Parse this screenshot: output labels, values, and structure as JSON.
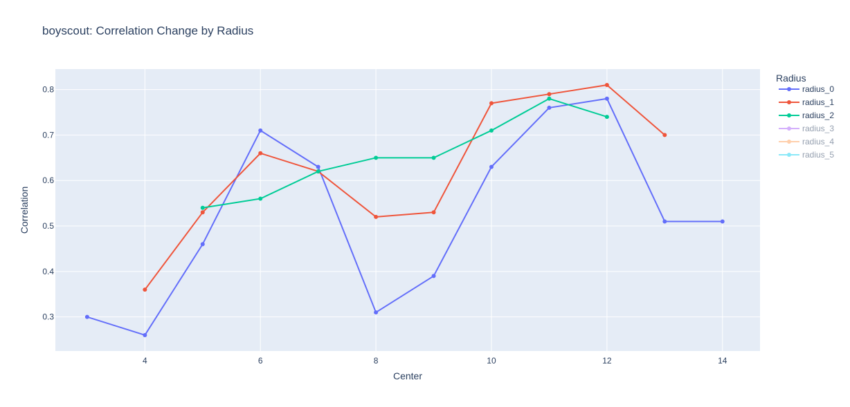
{
  "chart_data": {
    "type": "line",
    "title": "boyscout: Correlation Change by Radius",
    "xlabel": "Center",
    "ylabel": "Correlation",
    "xlim": [
      2.45,
      14.65
    ],
    "ylim": [
      0.225,
      0.845
    ],
    "xticks": [
      4,
      6,
      8,
      10,
      12,
      14
    ],
    "yticks": [
      0.3,
      0.4,
      0.5,
      0.6,
      0.7,
      0.8
    ],
    "xtick_labels": [
      "4",
      "6",
      "8",
      "10",
      "12",
      "14"
    ],
    "ytick_labels": [
      "0.3",
      "0.4",
      "0.5",
      "0.6",
      "0.7",
      "0.8"
    ],
    "legend_title": "Radius",
    "legend_position": "right",
    "grid": true,
    "series": [
      {
        "name": "radius_0",
        "color": "#636efa",
        "visible": true,
        "x": [
          3,
          4,
          5,
          6,
          7,
          8,
          9,
          10,
          11,
          12,
          13,
          14
        ],
        "y": [
          0.3,
          0.26,
          0.46,
          0.71,
          0.63,
          0.31,
          0.39,
          0.63,
          0.76,
          0.78,
          0.51,
          0.51
        ]
      },
      {
        "name": "radius_1",
        "color": "#ef553b",
        "visible": true,
        "x": [
          4,
          5,
          6,
          7,
          8,
          9,
          10,
          11,
          12,
          13
        ],
        "y": [
          0.36,
          0.53,
          0.66,
          0.62,
          0.52,
          0.53,
          0.77,
          0.79,
          0.81,
          0.7
        ]
      },
      {
        "name": "radius_2",
        "color": "#00cc96",
        "visible": true,
        "x": [
          5,
          6,
          7,
          8,
          9,
          10,
          11,
          12
        ],
        "y": [
          0.54,
          0.56,
          0.62,
          0.65,
          0.65,
          0.71,
          0.78,
          0.74
        ]
      },
      {
        "name": "radius_3",
        "color": "#ab63fa",
        "visible": false,
        "x": [],
        "y": []
      },
      {
        "name": "radius_4",
        "color": "#ffa15a",
        "visible": false,
        "x": [],
        "y": []
      },
      {
        "name": "radius_5",
        "color": "#19d3f3",
        "visible": false,
        "x": [],
        "y": []
      }
    ]
  }
}
